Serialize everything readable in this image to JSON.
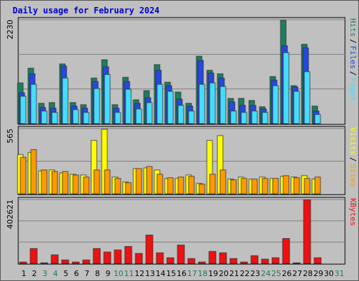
{
  "title": "Daily usage for February 2024",
  "legend_separator": "/",
  "chart_data": [
    {
      "type": "bar",
      "ylim": [
        0,
        2230
      ],
      "yticks": [
        2230
      ],
      "series": [
        {
          "name": "Hits",
          "color": "#1b7f5f",
          "values": [
            874,
            1190,
            437,
            452,
            1281,
            452,
            407,
            979,
            1371,
            407,
            994,
            512,
            708,
            1266,
            889,
            678,
            437,
            1446,
            1145,
            1070,
            542,
            542,
            497,
            362,
            1010,
            2215,
            814,
            1703,
            377,
            null,
            null
          ]
        },
        {
          "name": "Files",
          "color": "#2448e0",
          "values": [
            663,
            1070,
            347,
            331,
            1236,
            377,
            331,
            904,
            1220,
            331,
            904,
            437,
            557,
            1145,
            814,
            527,
            377,
            1356,
            1085,
            979,
            467,
            392,
            392,
            316,
            934,
            1673,
            784,
            1627,
            271,
            null,
            null
          ]
        },
        {
          "name": "Pages",
          "color": "#44ddff",
          "values": [
            588,
            844,
            271,
            241,
            979,
            301,
            241,
            753,
            1055,
            241,
            738,
            316,
            452,
            844,
            693,
            392,
            271,
            844,
            874,
            798,
            271,
            241,
            271,
            241,
            814,
            1522,
            693,
            1115,
            196,
            null,
            null
          ]
        }
      ]
    },
    {
      "type": "bar",
      "ylim": [
        0,
        565
      ],
      "yticks": [
        565
      ],
      "series": [
        {
          "name": "Visits",
          "color": "#ffff00",
          "values": [
            340,
            358,
            200,
            207,
            182,
            170,
            164,
            462,
            559,
            146,
            103,
            219,
            225,
            207,
            134,
            134,
            164,
            91,
            462,
            504,
            128,
            146,
            128,
            146,
            134,
            152,
            146,
            158,
            128,
            null,
            null
          ]
        },
        {
          "name": "Sites",
          "color": "#ff9900",
          "values": [
            316,
            383,
            207,
            194,
            194,
            164,
            146,
            207,
            207,
            134,
            97,
            219,
            237,
            170,
            140,
            146,
            152,
            85,
            170,
            207,
            122,
            134,
            128,
            134,
            134,
            158,
            140,
            134,
            146,
            null,
            null
          ]
        }
      ]
    },
    {
      "type": "bar",
      "ylim": [
        0,
        402621
      ],
      "yticks": [
        402621
      ],
      "series": [
        {
          "name": "KBytes",
          "color": "#ee1111",
          "values": [
            9000,
            94000,
            4000,
            54000,
            22000,
            9000,
            22000,
            94000,
            72000,
            85000,
            107000,
            63000,
            179000,
            67000,
            36000,
            116000,
            31000,
            9000,
            76000,
            67000,
            31000,
            9000,
            49000,
            27000,
            36000,
            157000,
            4000,
            400000,
            36000,
            null,
            null
          ]
        }
      ],
      "categories": [
        "1",
        "2",
        "3",
        "4",
        "5",
        "6",
        "7",
        "8",
        "9",
        "10",
        "11",
        "12",
        "13",
        "14",
        "15",
        "16",
        "17",
        "18",
        "19",
        "20",
        "21",
        "22",
        "23",
        "24",
        "25",
        "26",
        "27",
        "28",
        "29",
        "30",
        "31"
      ],
      "category_colors": [
        "#000",
        "#000",
        "#207a50",
        "#207a50",
        "#000",
        "#000",
        "#000",
        "#000",
        "#000",
        "#207a50",
        "#207a50",
        "#000",
        "#000",
        "#000",
        "#000",
        "#000",
        "#207a50",
        "#207a50",
        "#000",
        "#000",
        "#000",
        "#000",
        "#000",
        "#207a50",
        "#207a50",
        "#000",
        "#000",
        "#000",
        "#000",
        "#000",
        "#207a50"
      ]
    }
  ]
}
